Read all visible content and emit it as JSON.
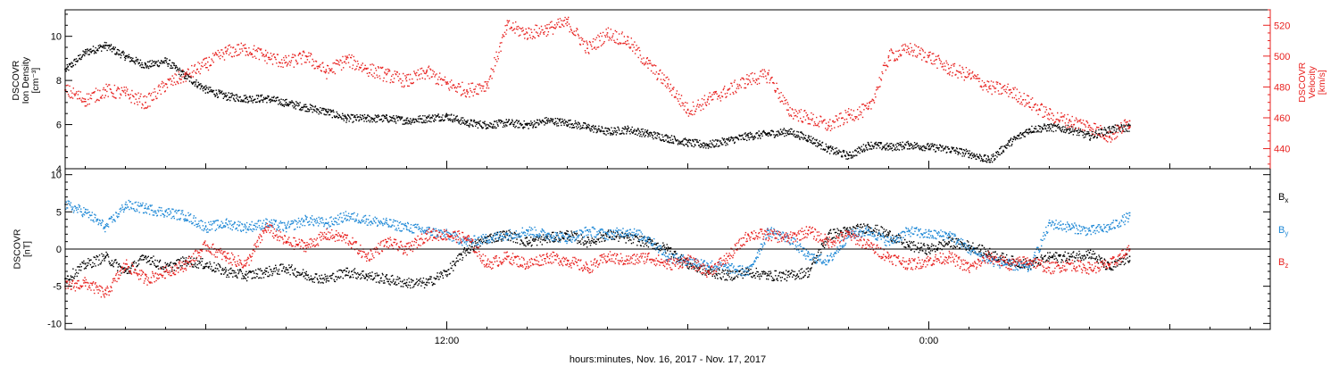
{
  "colors": {
    "density": "#000000",
    "velocity": "#e8211f",
    "bx": "#000000",
    "by": "#1e88d6",
    "bz": "#e8211f",
    "axis": "#000000"
  },
  "footer": {
    "xlabel": "hours:minutes, Nov. 16, 2017 - Nov. 17, 2017"
  },
  "chart_data": [
    {
      "type": "scatter",
      "panel": "plasma",
      "x_range_hours": [
        2.5,
        32.5
      ],
      "x_ticks_hours": [
        12,
        24,
        36
      ],
      "x_tick_labels": [
        "12:00",
        "0:00",
        "12:00"
      ],
      "left_axis": {
        "title_lines": [
          "DSCOVR",
          "Ion Density",
          "[cm⁻³]"
        ],
        "ylim": [
          4,
          11.2
        ],
        "ticks": [
          4,
          6,
          8,
          10
        ]
      },
      "right_axis": {
        "title_lines": [
          "DSCOVR",
          "Velocity",
          "[km/s]"
        ],
        "ylim": [
          427,
          530
        ],
        "ticks": [
          440,
          460,
          480,
          500,
          520
        ]
      },
      "series": [
        {
          "key": "density",
          "axis": "left",
          "x": [
            2.5,
            3.0,
            3.5,
            4.0,
            4.5,
            5.0,
            5.5,
            6.0,
            6.5,
            7.0,
            7.5,
            8.0,
            8.5,
            9.0,
            9.5,
            10.0,
            10.5,
            11.0,
            11.5,
            12.0,
            12.5,
            13.0,
            13.5,
            14.0,
            14.5,
            15.0,
            15.5,
            16.0,
            16.5,
            17.0,
            17.5,
            18.0,
            18.5,
            19.0,
            19.5,
            20.0,
            20.5,
            21.0,
            21.5,
            22.0,
            22.5,
            23.0,
            23.5,
            24.0,
            24.5,
            25.0,
            25.5,
            26.0,
            26.5,
            27.0,
            27.5,
            28.0,
            28.5,
            29.0
          ],
          "values": [
            8.5,
            9.3,
            9.6,
            9.1,
            8.7,
            8.9,
            8.2,
            7.6,
            7.3,
            7.2,
            7.2,
            7.0,
            6.8,
            6.6,
            6.3,
            6.3,
            6.3,
            6.2,
            6.3,
            6.4,
            6.1,
            6.0,
            6.1,
            6.0,
            6.2,
            6.1,
            5.9,
            5.7,
            5.8,
            5.6,
            5.4,
            5.2,
            5.1,
            5.3,
            5.5,
            5.6,
            5.7,
            5.4,
            4.9,
            4.6,
            5.1,
            5.0,
            5.1,
            5.0,
            4.9,
            4.7,
            4.4,
            5.2,
            5.8,
            5.9,
            5.8,
            5.5,
            5.8,
            5.9
          ]
        },
        {
          "key": "velocity",
          "axis": "right",
          "x": [
            2.5,
            3.0,
            3.5,
            4.0,
            4.5,
            5.0,
            5.5,
            6.0,
            6.5,
            7.0,
            7.5,
            8.0,
            8.5,
            9.0,
            9.5,
            10.0,
            10.5,
            11.0,
            11.5,
            12.0,
            12.5,
            13.0,
            13.5,
            14.0,
            14.5,
            15.0,
            15.5,
            16.0,
            16.5,
            17.0,
            17.5,
            18.0,
            18.5,
            19.0,
            19.5,
            20.0,
            20.5,
            21.0,
            21.5,
            22.0,
            22.5,
            23.0,
            23.5,
            24.0,
            24.5,
            25.0,
            25.5,
            26.0,
            26.5,
            27.0,
            27.5,
            28.0,
            28.5,
            29.0
          ],
          "values": [
            478,
            472,
            478,
            476,
            470,
            482,
            488,
            495,
            503,
            505,
            500,
            496,
            500,
            490,
            498,
            492,
            488,
            484,
            490,
            482,
            478,
            482,
            520,
            515,
            518,
            522,
            505,
            515,
            510,
            495,
            482,
            465,
            472,
            478,
            485,
            488,
            465,
            460,
            455,
            462,
            466,
            500,
            505,
            500,
            492,
            488,
            480,
            478,
            470,
            462,
            458,
            455,
            448,
            458
          ]
        }
      ]
    },
    {
      "type": "scatter",
      "panel": "magnetic",
      "x_range_hours": [
        2.5,
        32.5
      ],
      "left_axis": {
        "title_lines": [
          "DSCOVR",
          "[nT]"
        ],
        "ylim": [
          -10.8,
          10.8
        ],
        "ticks": [
          -10,
          -5,
          0,
          5,
          10
        ]
      },
      "zero_line": true,
      "legend": [
        "Bₓ",
        "Bᵧ",
        "B₂"
      ],
      "legend_labels": [
        {
          "base": "B",
          "sub": "x"
        },
        {
          "base": "B",
          "sub": "y"
        },
        {
          "base": "B",
          "sub": "z"
        }
      ],
      "series": [
        {
          "key": "bx",
          "x": [
            2.5,
            3.0,
            3.5,
            4.0,
            4.5,
            5.0,
            5.5,
            6.0,
            6.5,
            7.0,
            7.5,
            8.0,
            8.5,
            9.0,
            9.5,
            10.0,
            10.5,
            11.0,
            11.5,
            12.0,
            12.5,
            13.0,
            13.5,
            14.0,
            14.5,
            15.0,
            15.5,
            16.0,
            16.5,
            17.0,
            17.5,
            18.0,
            18.5,
            19.0,
            19.5,
            20.0,
            20.5,
            21.0,
            21.5,
            22.0,
            22.5,
            23.0,
            23.5,
            24.0,
            24.5,
            25.0,
            25.5,
            26.0,
            26.5,
            27.0,
            27.5,
            28.0,
            28.5,
            29.0
          ],
          "values": [
            -4.0,
            -2.0,
            -1.0,
            -3.0,
            -1.0,
            -2.5,
            -1.5,
            -2.0,
            -3.0,
            -3.5,
            -3.0,
            -2.5,
            -3.5,
            -4.0,
            -3.0,
            -3.5,
            -4.0,
            -4.5,
            -4.5,
            -3.0,
            0.0,
            1.5,
            2.0,
            1.0,
            1.5,
            2.0,
            1.0,
            2.0,
            1.5,
            1.0,
            0.0,
            -2.0,
            -3.0,
            -3.5,
            -3.0,
            -3.5,
            -3.5,
            -3.0,
            2.0,
            2.5,
            3.0,
            2.0,
            0.5,
            0.0,
            1.0,
            0.5,
            -0.5,
            -1.5,
            -2.0,
            -1.0,
            -1.0,
            -0.5,
            -2.5,
            -1.0
          ]
        },
        {
          "key": "by",
          "x": [
            2.5,
            3.0,
            3.5,
            4.0,
            4.5,
            5.0,
            5.5,
            6.0,
            6.5,
            7.0,
            7.5,
            8.0,
            8.5,
            9.0,
            9.5,
            10.0,
            10.5,
            11.0,
            11.5,
            12.0,
            12.5,
            13.0,
            13.5,
            14.0,
            14.5,
            15.0,
            15.5,
            16.0,
            16.5,
            17.0,
            17.5,
            18.0,
            18.5,
            19.0,
            19.5,
            20.0,
            20.5,
            21.0,
            21.5,
            22.0,
            22.5,
            23.0,
            23.5,
            24.0,
            24.5,
            25.0,
            25.5,
            26.0,
            26.5,
            27.0,
            27.5,
            28.0,
            28.5,
            29.0
          ],
          "values": [
            6.0,
            5.0,
            3.0,
            6.0,
            5.5,
            5.0,
            4.5,
            3.0,
            3.5,
            3.0,
            3.5,
            3.0,
            4.0,
            3.5,
            4.5,
            4.0,
            3.5,
            3.0,
            2.5,
            2.0,
            1.0,
            1.5,
            2.0,
            2.5,
            2.0,
            1.5,
            2.5,
            2.0,
            2.5,
            1.5,
            -1.0,
            -1.5,
            -2.0,
            -2.5,
            -3.0,
            2.5,
            1.5,
            -1.0,
            -1.5,
            2.0,
            2.5,
            1.0,
            2.5,
            2.0,
            2.0,
            0.0,
            -1.5,
            -2.0,
            -2.5,
            3.5,
            3.0,
            2.5,
            3.0,
            4.5
          ]
        },
        {
          "key": "bz",
          "x": [
            2.5,
            3.0,
            3.5,
            4.0,
            4.5,
            5.0,
            5.5,
            6.0,
            6.5,
            7.0,
            7.5,
            8.0,
            8.5,
            9.0,
            9.5,
            10.0,
            10.5,
            11.0,
            11.5,
            12.0,
            12.5,
            13.0,
            13.5,
            14.0,
            14.5,
            15.0,
            15.5,
            16.0,
            16.5,
            17.0,
            17.5,
            18.0,
            18.5,
            19.0,
            19.5,
            20.0,
            20.5,
            21.0,
            21.5,
            22.0,
            22.5,
            23.0,
            23.5,
            24.0,
            24.5,
            25.0,
            25.5,
            26.0,
            26.5,
            27.0,
            27.5,
            28.0,
            28.5,
            29.0
          ],
          "values": [
            -5.0,
            -4.5,
            -6.0,
            -2.0,
            -4.0,
            -3.0,
            -2.0,
            0.5,
            -1.0,
            -2.0,
            3.0,
            1.0,
            0.5,
            2.0,
            1.5,
            -1.0,
            1.0,
            0.0,
            2.0,
            2.0,
            1.5,
            -2.0,
            -1.0,
            -2.0,
            -1.0,
            -1.5,
            -2.5,
            -1.0,
            -1.5,
            -1.0,
            -2.0,
            -1.5,
            -3.0,
            -1.0,
            2.0,
            2.0,
            1.5,
            2.5,
            1.0,
            2.0,
            0.5,
            -1.0,
            -2.0,
            -1.5,
            -1.0,
            -2.5,
            -1.0,
            -2.0,
            -1.5,
            -2.5,
            -2.0,
            -2.5,
            -2.0,
            0.0
          ]
        }
      ]
    }
  ]
}
